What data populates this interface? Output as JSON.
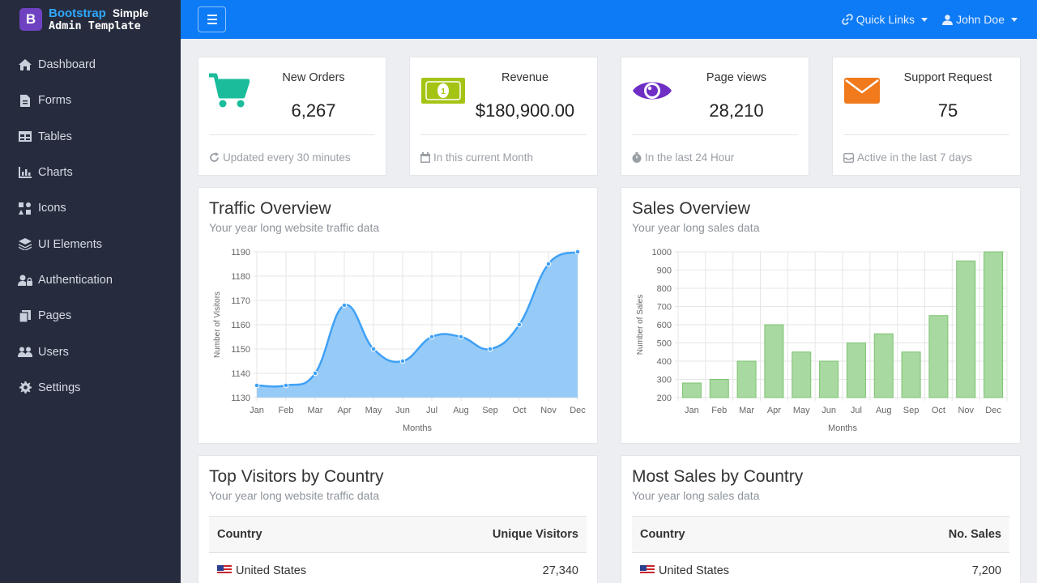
{
  "brand": {
    "logo_letter": "B",
    "name_part1": "Bootstrap",
    "name_part2": "Simple",
    "name_line2": "Admin Template"
  },
  "sidebar": {
    "items": [
      {
        "label": "Dashboard",
        "icon": "home-icon"
      },
      {
        "label": "Forms",
        "icon": "file-icon"
      },
      {
        "label": "Tables",
        "icon": "table-icon"
      },
      {
        "label": "Charts",
        "icon": "chart-icon"
      },
      {
        "label": "Icons",
        "icon": "icons-icon"
      },
      {
        "label": "UI Elements",
        "icon": "layers-icon"
      },
      {
        "label": "Authentication",
        "icon": "user-lock-icon"
      },
      {
        "label": "Pages",
        "icon": "copy-icon"
      },
      {
        "label": "Users",
        "icon": "users-icon"
      },
      {
        "label": "Settings",
        "icon": "gear-icon"
      }
    ]
  },
  "topbar": {
    "quick_links": "Quick Links",
    "user_name": "John Doe"
  },
  "stats": [
    {
      "label": "New Orders",
      "value": "6,267",
      "footer": "Updated every 30 minutes",
      "icon": "cart-icon",
      "color": "#1abc9c"
    },
    {
      "label": "Revenue",
      "value": "$180,900.00",
      "footer": "In this current Month",
      "icon": "money-icon",
      "color": "#a4c414"
    },
    {
      "label": "Page views",
      "value": "28,210",
      "footer": "In the last 24 Hour",
      "icon": "eye-icon",
      "color": "#6f2fc4"
    },
    {
      "label": "Support Request",
      "value": "75",
      "footer": "Active in the last 7 days",
      "icon": "envelope-icon",
      "color": "#f07a1c"
    }
  ],
  "traffic": {
    "title": "Traffic Overview",
    "subtitle": "Your year long website traffic data"
  },
  "sales": {
    "title": "Sales Overview",
    "subtitle": "Your year long sales data"
  },
  "chart_data": [
    {
      "type": "area",
      "categories": [
        "Jan",
        "Feb",
        "Mar",
        "Apr",
        "May",
        "Jun",
        "Jul",
        "Aug",
        "Sep",
        "Oct",
        "Nov",
        "Dec"
      ],
      "values": [
        1135,
        1135,
        1140,
        1168,
        1150,
        1145,
        1155,
        1155,
        1150,
        1160,
        1185,
        1190
      ],
      "xlabel": "Months",
      "ylabel": "Number of Visitors",
      "ylim": [
        1130,
        1190
      ],
      "yticks": [
        1130,
        1140,
        1150,
        1160,
        1170,
        1180,
        1190
      ],
      "grid": true,
      "color": "#3fa1f5"
    },
    {
      "type": "bar",
      "categories": [
        "Jan",
        "Feb",
        "Mar",
        "Apr",
        "May",
        "Jun",
        "Jul",
        "Aug",
        "Sep",
        "Oct",
        "Nov",
        "Dec"
      ],
      "values": [
        280,
        300,
        400,
        600,
        450,
        400,
        500,
        550,
        450,
        650,
        950,
        1000
      ],
      "xlabel": "Months",
      "ylabel": "Number of Sales",
      "ylim": [
        200,
        1000
      ],
      "yticks": [
        200,
        300,
        400,
        500,
        600,
        700,
        800,
        900,
        1000
      ],
      "grid": true,
      "color": "#a8d9a0"
    }
  ],
  "visitors_table": {
    "title": "Top Visitors by Country",
    "subtitle": "Your year long website traffic data",
    "headers": [
      "Country",
      "Unique Visitors"
    ],
    "rows": [
      {
        "country": "United States",
        "value": "27,340"
      }
    ]
  },
  "sales_table": {
    "title": "Most Sales by Country",
    "subtitle": "Your year long sales data",
    "headers": [
      "Country",
      "No. Sales"
    ],
    "rows": [
      {
        "country": "United States",
        "value": "7,200"
      }
    ]
  }
}
